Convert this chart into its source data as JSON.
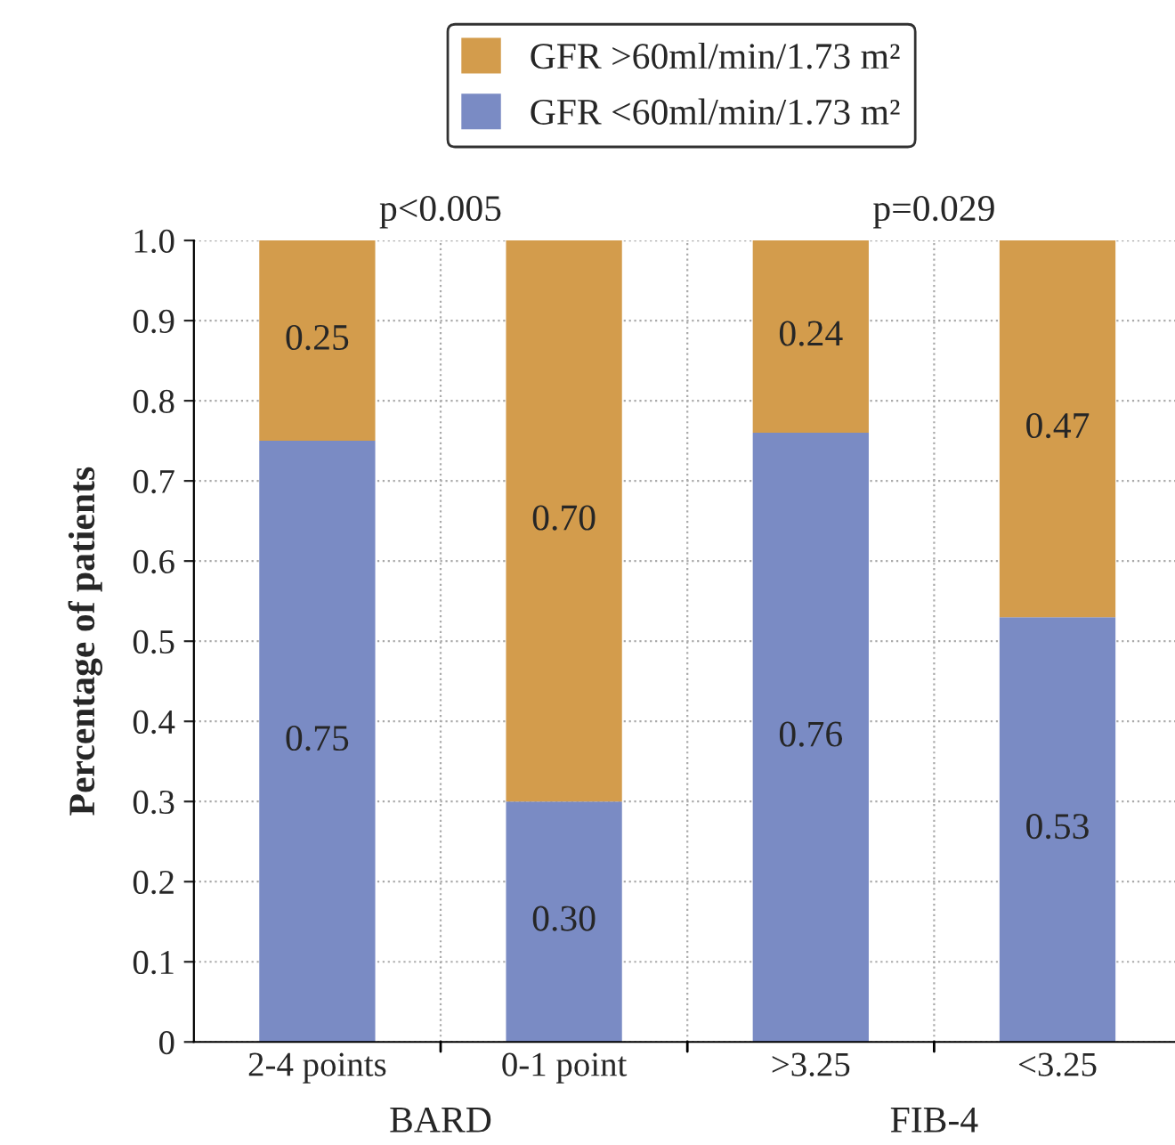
{
  "chart_data": {
    "type": "bar",
    "stacked": true,
    "ylabel": "Percentage of patients",
    "categories": [
      "2-4 points",
      "0-1 point",
      ">3.25",
      "<3.25"
    ],
    "series": [
      {
        "name": "GFR <60ml/min/1.73 m²",
        "color": "#7a8bc4",
        "values": [
          0.75,
          0.3,
          0.76,
          0.53
        ],
        "value_labels": [
          "0.75",
          "0.30",
          "0.76",
          "0.53"
        ]
      },
      {
        "name": "GFR >60ml/min/1.73 m²",
        "color": "#d39c4c",
        "values": [
          0.25,
          0.7,
          0.24,
          0.47
        ],
        "value_labels": [
          "0.25",
          "0.70",
          "0.24",
          "0.47"
        ]
      }
    ],
    "ylim": [
      0,
      1.0
    ],
    "yticks": [
      {
        "value": 0,
        "label": "0"
      },
      0.1,
      0.2,
      0.3,
      0.4,
      0.5,
      0.6,
      0.7,
      0.8,
      0.9,
      {
        "value": 1.0,
        "label": "1.0"
      }
    ],
    "grid": true,
    "legend": "top",
    "annotations": [
      "p<0.005",
      "p=0.029",
      "BARD",
      "FIB-4"
    ]
  }
}
